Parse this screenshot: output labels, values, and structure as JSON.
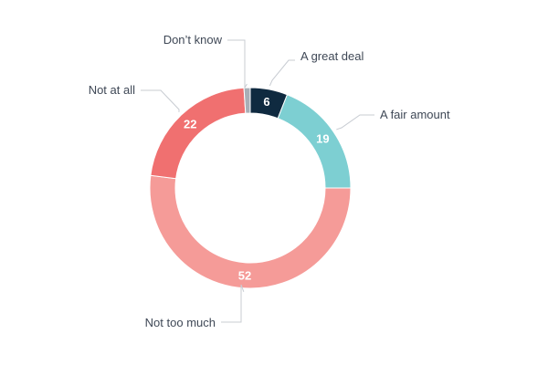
{
  "chart_data": {
    "type": "pie",
    "variant": "donut",
    "title": "",
    "categories": [
      "A great deal",
      "A fair amount",
      "Not too much",
      "Not at all",
      "Don’t know"
    ],
    "values": [
      6,
      19,
      52,
      22,
      1
    ],
    "value_labels": [
      "6",
      "19",
      "52",
      "22",
      ""
    ],
    "colors": [
      "#0f2a40",
      "#7dcfd2",
      "#f59b98",
      "#f07070",
      "#a8afb7"
    ],
    "legend": "none",
    "start_angle_deg": 0,
    "direction": "clockwise"
  }
}
